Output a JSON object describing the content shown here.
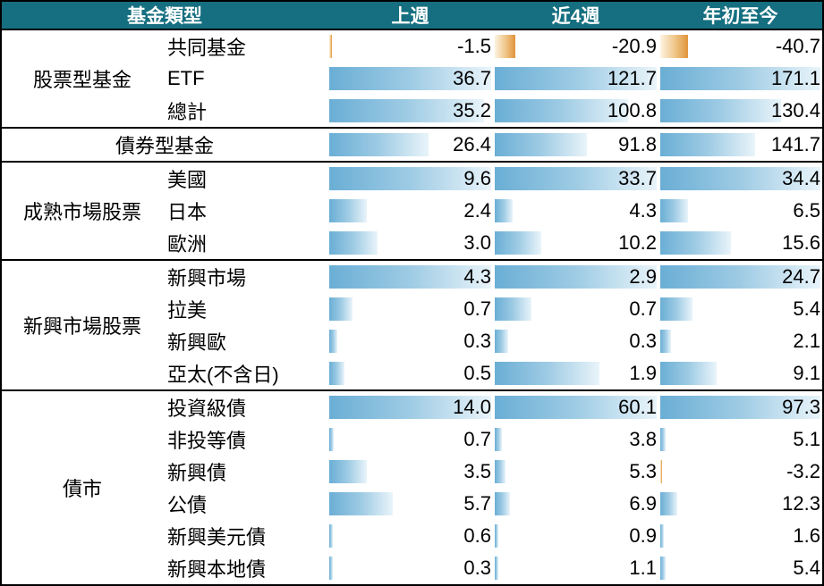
{
  "header": {
    "fund_type_label": "基金類型",
    "col_last_week": "上週",
    "col_4_weeks": "近4週",
    "col_ytd": "年初至今"
  },
  "colors": {
    "header_bg": "#156f80",
    "header_text": "#ffffff",
    "positive_bar_start": "#6aaed5",
    "positive_bar_end": "#e9f4fa",
    "negative_bar_start": "#fdf3e2",
    "negative_bar_end": "#e1943a",
    "border": "#000000",
    "text": "#000000"
  },
  "chart_data": {
    "type": "table",
    "title": "",
    "columns": [
      "基金類型",
      "上週",
      "近4週",
      "年初至今"
    ],
    "bar_style": "excel-data-bars, blue gradient positive, orange gradient negative, scaled per section per column",
    "sections": [
      {
        "group": "股票型基金",
        "merged_label": false,
        "rows": [
          {
            "label": "共同基金",
            "values": [
              -1.5,
              -20.9,
              -40.7
            ]
          },
          {
            "label": "ETF",
            "values": [
              36.7,
              121.7,
              171.1
            ]
          },
          {
            "label": "總計",
            "values": [
              35.2,
              100.8,
              130.4
            ]
          }
        ]
      },
      {
        "group": "債券型基金",
        "merged_label": true,
        "bar_max": [
          42.6,
          158.3,
          236.2
        ],
        "rows": [
          {
            "label": "",
            "values": [
              26.4,
              91.8,
              141.7
            ]
          }
        ]
      },
      {
        "group": "成熟市場股票",
        "merged_label": false,
        "rows": [
          {
            "label": "美國",
            "values": [
              9.6,
              33.7,
              34.4
            ]
          },
          {
            "label": "日本",
            "values": [
              2.4,
              4.3,
              6.5
            ]
          },
          {
            "label": "歐洲",
            "values": [
              3.0,
              10.2,
              15.6
            ]
          }
        ]
      },
      {
        "group": "新興市場股票",
        "merged_label": false,
        "rows": [
          {
            "label": "新興市場",
            "values": [
              4.3,
              2.9,
              24.7
            ]
          },
          {
            "label": "拉美",
            "values": [
              0.7,
              0.7,
              5.4
            ]
          },
          {
            "label": "新興歐",
            "values": [
              0.3,
              0.3,
              2.1
            ]
          },
          {
            "label": "亞太(不含日)",
            "values": [
              0.5,
              1.9,
              9.1
            ]
          }
        ]
      },
      {
        "group": "債市",
        "merged_label": false,
        "rows": [
          {
            "label": "投資級債",
            "values": [
              14.0,
              60.1,
              97.3
            ]
          },
          {
            "label": "非投等債",
            "values": [
              0.7,
              3.8,
              5.1
            ]
          },
          {
            "label": "新興債",
            "values": [
              3.5,
              5.3,
              -3.2
            ]
          },
          {
            "label": "公債",
            "values": [
              5.7,
              6.9,
              12.3
            ]
          },
          {
            "label": "新興美元債",
            "values": [
              0.6,
              0.9,
              1.6
            ]
          },
          {
            "label": "新興本地債",
            "values": [
              0.3,
              1.1,
              5.4
            ]
          }
        ]
      }
    ]
  }
}
